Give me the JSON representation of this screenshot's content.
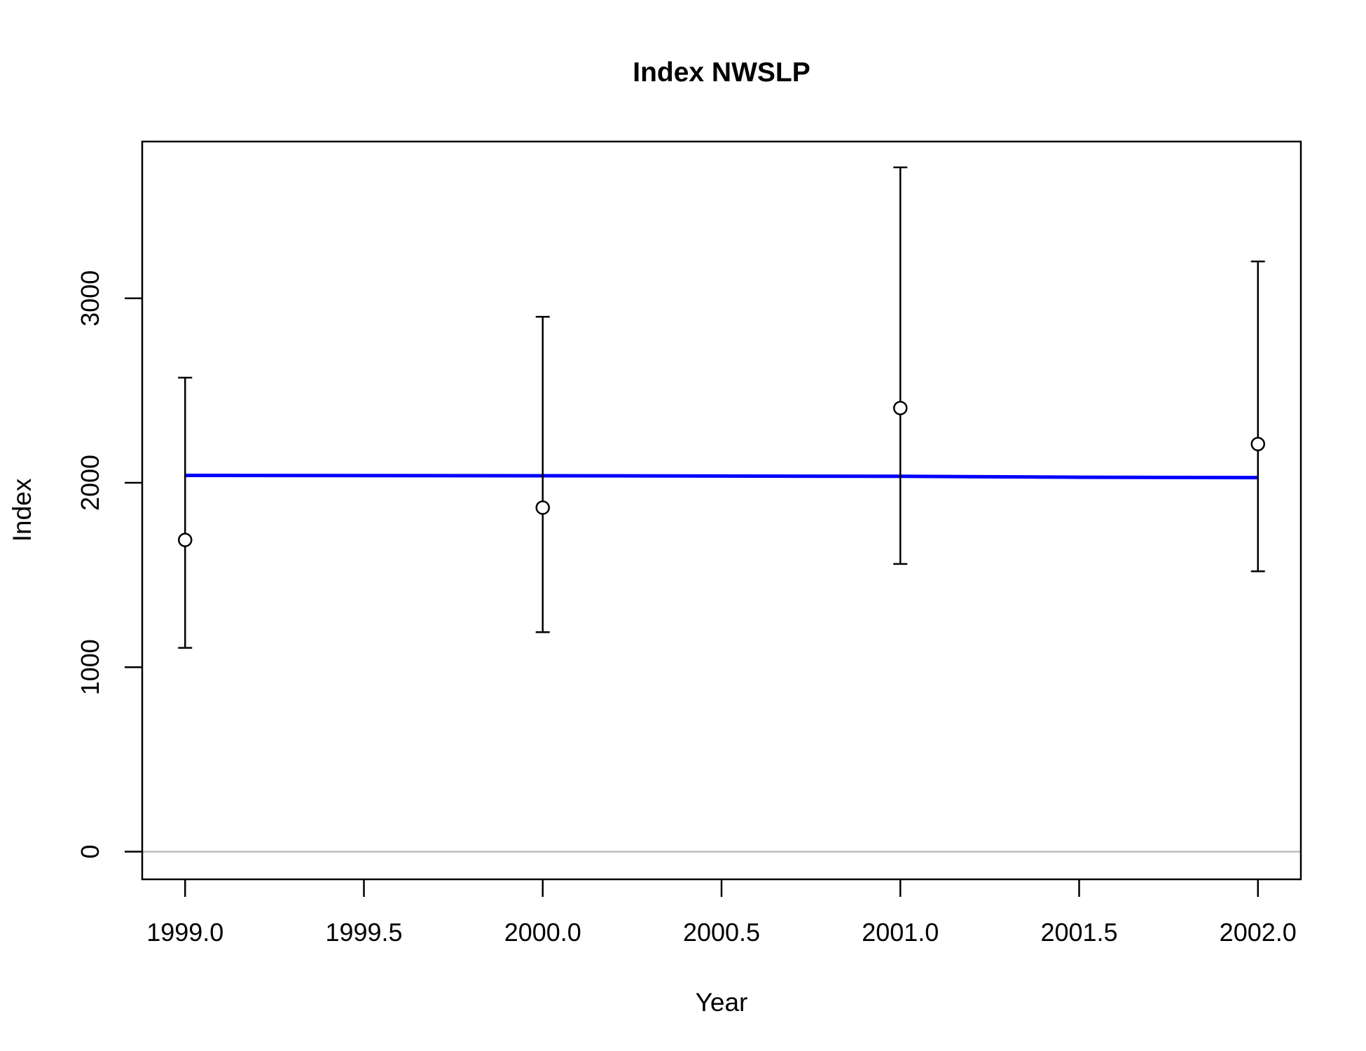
{
  "chart_data": {
    "type": "scatter",
    "title": "Index NWSLP",
    "xlabel": "Year",
    "ylabel": "Index",
    "xlim": [
      1998.88,
      2002.12
    ],
    "ylim": [
      -150,
      3850
    ],
    "x_ticks": [
      1999.0,
      1999.5,
      2000.0,
      2000.5,
      2001.0,
      2001.5,
      2002.0
    ],
    "x_tick_labels": [
      "1999.0",
      "1999.5",
      "2000.0",
      "2000.5",
      "2001.0",
      "2001.5",
      "2002.0"
    ],
    "y_ticks": [
      0,
      1000,
      2000,
      3000
    ],
    "y_tick_labels": [
      "0",
      "1000",
      "2000",
      "3000"
    ],
    "grid": false,
    "reference_line": {
      "y": 0,
      "color": "#bebebe"
    },
    "observed": {
      "x": [
        1999,
        2000,
        2001,
        2002
      ],
      "y": [
        1690,
        1865,
        2405,
        2210
      ],
      "lower": [
        1105,
        1190,
        1560,
        1520
      ],
      "upper": [
        2570,
        2900,
        3710,
        3200
      ],
      "color": "#000000"
    },
    "fitted": {
      "x": [
        1999,
        2000,
        2001,
        2001.5,
        2002
      ],
      "y": [
        2040,
        2038,
        2035,
        2030,
        2028
      ],
      "color": "#0000ff"
    }
  }
}
